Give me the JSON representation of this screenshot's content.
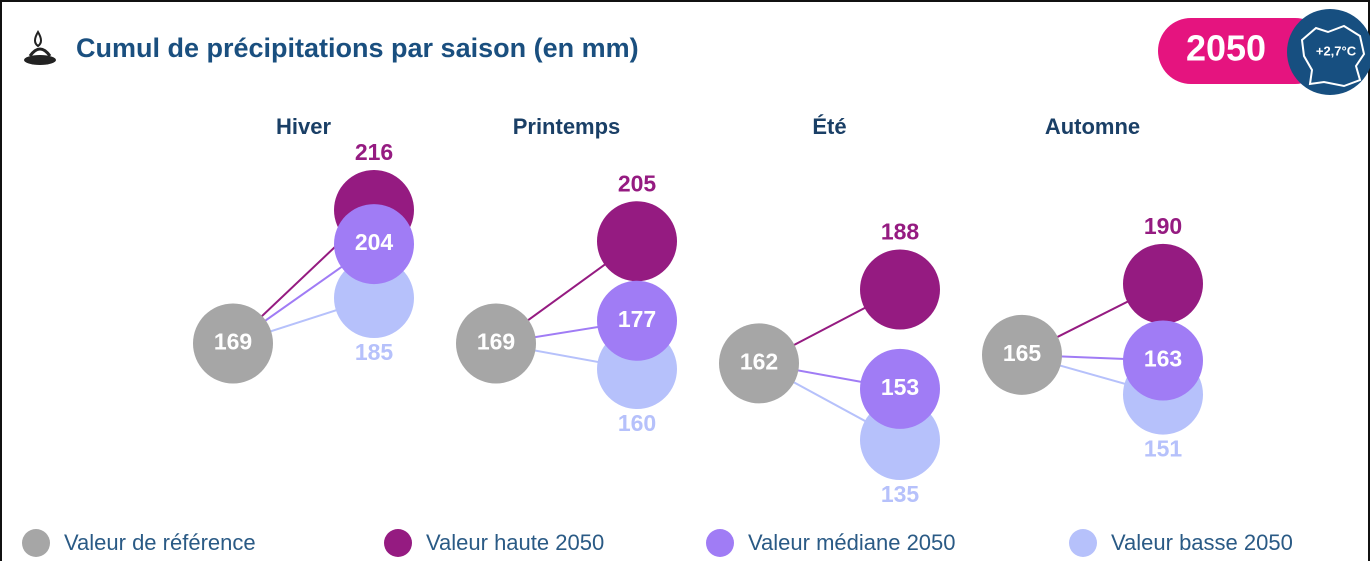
{
  "chart_data": {
    "type": "dumbbell",
    "title": "Cumul de précipitations par saison (en mm)",
    "badge": {
      "year": "2050",
      "warming": "+2,7°C"
    },
    "categories": [
      "Hiver",
      "Printemps",
      "Été",
      "Automne"
    ],
    "series": [
      {
        "name": "Valeur de référence",
        "color": "#a6a6a6",
        "values": [
          169,
          169,
          162,
          165
        ]
      },
      {
        "name": "Valeur haute 2050",
        "color": "#951b81",
        "values": [
          216,
          205,
          188,
          190
        ]
      },
      {
        "name": "Valeur médiane 2050",
        "color": "#a07cf5",
        "values": [
          204,
          177,
          153,
          163
        ]
      },
      {
        "name": "Valeur basse 2050",
        "color": "#b6c1fb",
        "values": [
          185,
          160,
          135,
          151
        ]
      }
    ]
  }
}
